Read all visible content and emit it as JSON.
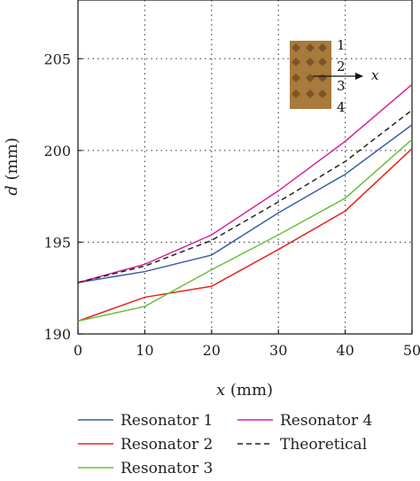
{
  "chart_data": {
    "type": "line",
    "xlabel_var": "x",
    "xlabel_unit": " (mm)",
    "ylabel_var": "d",
    "ylabel_unit": " (mm)",
    "xlim": [
      0,
      50
    ],
    "ylim": [
      190,
      208.2
    ],
    "xticks": [
      0,
      10,
      20,
      30,
      40,
      50
    ],
    "yticks": [
      190,
      195,
      200,
      205
    ],
    "grid": true,
    "legend_position": "bottom",
    "x": [
      0,
      10,
      20,
      30,
      40,
      50
    ],
    "series": [
      {
        "name": "Resonator 1",
        "color": "#3a5fa8",
        "dash": "solid",
        "values": [
          192.8,
          193.4,
          194.3,
          196.6,
          198.7,
          201.4
        ]
      },
      {
        "name": "Resonator 2",
        "color": "#e8231b",
        "dash": "solid",
        "values": [
          190.7,
          192.0,
          192.6,
          194.6,
          196.7,
          200.1
        ]
      },
      {
        "name": "Resonator 3",
        "color": "#6abf3a",
        "dash": "solid",
        "values": [
          190.7,
          191.5,
          193.5,
          195.4,
          197.4,
          200.6
        ]
      },
      {
        "name": "Resonator 4",
        "color": "#d6239a",
        "dash": "solid",
        "values": [
          192.8,
          193.8,
          195.4,
          197.8,
          200.5,
          203.6
        ]
      },
      {
        "name": "Theoretical",
        "color": "#222222",
        "dash": "dashed",
        "values": [
          192.8,
          193.7,
          195.1,
          197.2,
          199.4,
          202.2
        ]
      }
    ]
  },
  "inset": {
    "labels": [
      "1",
      "2",
      "3",
      "4"
    ],
    "axis_label": "x",
    "image_color": "#a87a3c"
  }
}
